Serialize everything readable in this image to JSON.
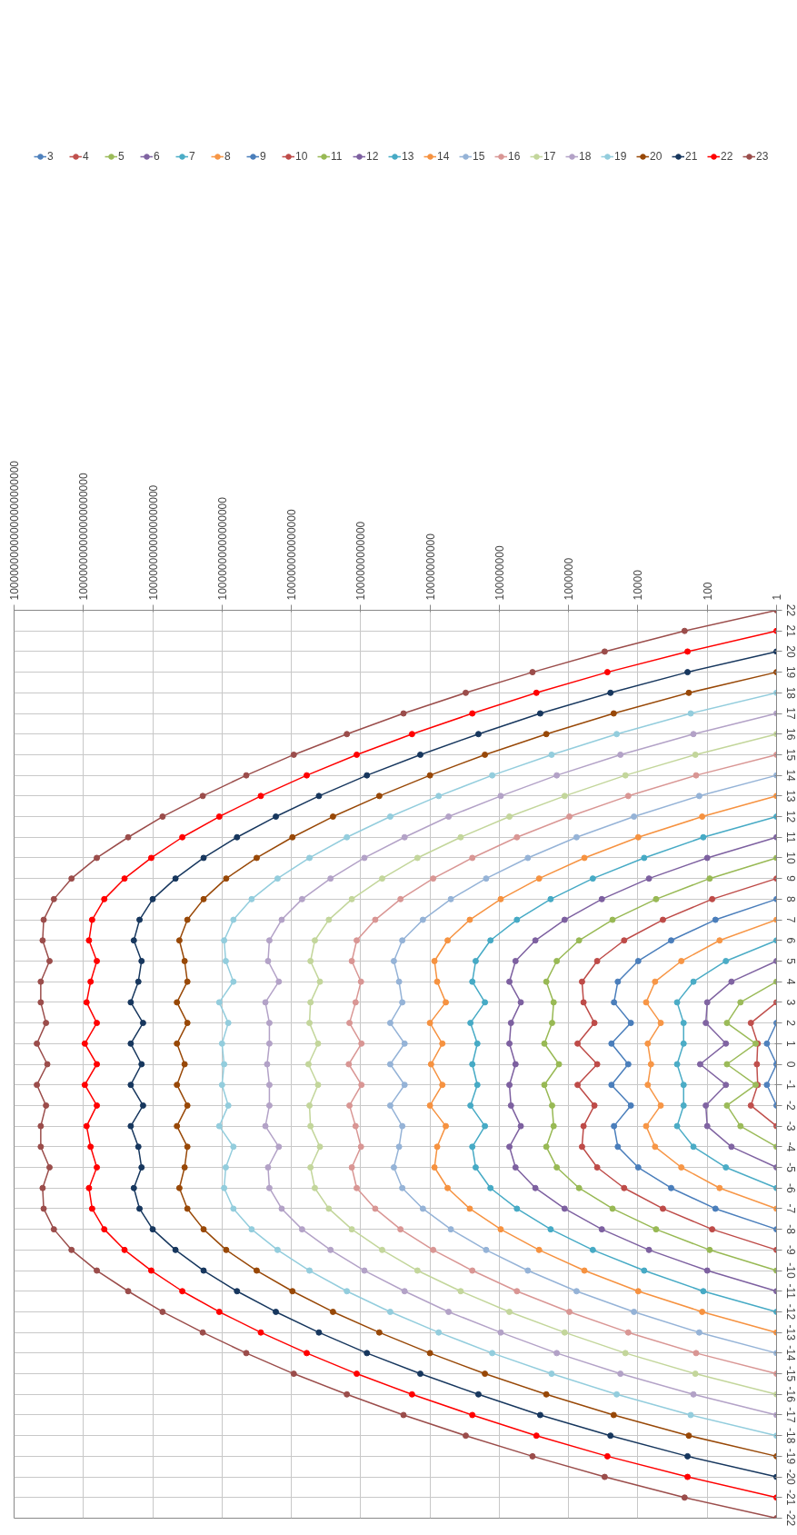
{
  "chart_data": {
    "type": "line",
    "ylim": [
      -22,
      22
    ],
    "yticks": [
      -22,
      -21,
      -20,
      -19,
      -18,
      -17,
      -16,
      -15,
      -14,
      -13,
      -12,
      -11,
      -10,
      -9,
      -8,
      -7,
      -6,
      -5,
      -4,
      -3,
      -2,
      -1,
      0,
      1,
      2,
      3,
      4,
      5,
      6,
      7,
      8,
      9,
      10,
      11,
      12,
      13,
      14,
      15,
      16,
      17,
      18,
      19,
      20,
      21,
      22
    ],
    "xlim": [
      1e+22,
      1
    ],
    "log": "x",
    "grid": true,
    "legend": "top",
    "marker": "circle",
    "line_style": "solid",
    "xticks": [
      1,
      100,
      10000,
      {
        "value": 1000000.0,
        "label": "1000000"
      },
      {
        "value": 100000000.0,
        "label": "100000000"
      },
      {
        "value": 10000000000.0,
        "label": "10000000000"
      },
      {
        "value": 1000000000000.0,
        "label": "1000000000000"
      },
      {
        "value": 100000000000000.0,
        "label": "100000000000000"
      },
      {
        "value": 1e+16,
        "label": "10000000000000000"
      },
      {
        "value": 1e+18,
        "label": "1000000000000000000"
      },
      {
        "value": 1e+20,
        "label": "100000000000000000000"
      },
      {
        "value": 1e+22,
        "label": "10000000000000000000000"
      }
    ],
    "series": [
      {
        "name": "3",
        "color": "#4f81bd",
        "values": [
          -2,
          -1,
          0,
          1,
          2
        ],
        "x": [
          1,
          1.9,
          1,
          1.9,
          1
        ]
      },
      {
        "name": "4",
        "color": "#c0504d",
        "values": [
          -3,
          -2,
          -1,
          0,
          1,
          2,
          3
        ],
        "x": [
          1,
          5.5,
          3.5,
          3.7,
          3.5,
          5.5,
          1
        ]
      },
      {
        "name": "5",
        "color": "#9bbb59",
        "values": [
          -4,
          -3,
          -2,
          -1,
          0,
          1,
          2,
          3,
          4
        ],
        "x": [
          1,
          11,
          27,
          4,
          27,
          4,
          27,
          11,
          1
        ]
      },
      {
        "name": "6",
        "color": "#8064a2",
        "values": [
          -5,
          -4,
          -3,
          -2,
          -1,
          0,
          1,
          2,
          3,
          4,
          5
        ],
        "x": [
          1,
          20,
          100,
          110,
          29,
          160,
          29,
          110,
          100,
          20,
          1
        ]
      },
      {
        "name": "7",
        "color": "#4bacc6",
        "values": [
          -6,
          -5,
          -4,
          -3,
          -2,
          -1,
          0,
          1,
          2,
          3,
          4,
          5,
          6
        ],
        "x": [
          1,
          29,
          250,
          740,
          480,
          480,
          740,
          480,
          480,
          740,
          250,
          29,
          1
        ]
      },
      {
        "name": "8",
        "color": "#f79646",
        "values": [
          -7,
          -6,
          -5,
          -4,
          -3,
          -2,
          -1,
          0,
          1,
          2,
          3,
          4,
          5,
          6,
          7
        ],
        "x": [
          1,
          44,
          560,
          3200,
          5800,
          2200,
          5200,
          4200,
          5200,
          2200,
          5800,
          3200,
          560,
          44,
          1
        ]
      },
      {
        "name": "9",
        "color": "#4a7ebb",
        "values": [
          -8,
          -7,
          -6,
          -5,
          -4,
          -3,
          -2,
          -1,
          0,
          1,
          2,
          3,
          4,
          5,
          6,
          7,
          8
        ],
        "x": [
          1,
          58,
          1100,
          9800,
          38000,
          49000,
          16000,
          58000,
          19000,
          58000,
          16000,
          49000,
          38000,
          9800,
          1100,
          58,
          1
        ]
      },
      {
        "name": "10",
        "color": "#be4b48",
        "values": [
          -9,
          -8,
          -7,
          -6,
          -5,
          -4,
          -3,
          -2,
          -1,
          0,
          1,
          2,
          3,
          4,
          5,
          6,
          7,
          8,
          9
        ],
        "x": [
          1,
          72,
          1900,
          25000,
          150000,
          410000,
          370000,
          180000,
          550000,
          150000,
          550000,
          180000,
          370000,
          410000,
          150000,
          25000,
          1900,
          72,
          1
        ]
      },
      {
        "name": "11",
        "color": "#98b954",
        "values": [
          -10,
          -9,
          -8,
          -7,
          -6,
          -5,
          -4,
          -3,
          -2,
          -1,
          0,
          1,
          2,
          3,
          4,
          5,
          6,
          7,
          8,
          9,
          10
        ],
        "x": [
          1,
          85,
          3000,
          54000,
          500000,
          2200000.0,
          4400000.0,
          2700000.0,
          3000000.0,
          5000000.0,
          1900000.0,
          5000000.0,
          3000000.0,
          2700000.0,
          4400000.0,
          2200000.0,
          500000,
          54000,
          3000,
          85,
          1
        ]
      },
      {
        "name": "12",
        "color": "#7d60a0",
        "values": [
          -11,
          -10,
          -9,
          -8,
          -7,
          -6,
          -5,
          -4,
          -3,
          -2,
          -1,
          0,
          1,
          2,
          3,
          4,
          5,
          6,
          7,
          8,
          9,
          10,
          11
        ],
        "x": [
          1,
          100,
          4800,
          110000,
          1300000.0,
          9100000.0,
          34000000.0,
          51000000.0,
          24000000.0,
          46000000.0,
          51000000.0,
          34000000.0,
          51000000.0,
          46000000.0,
          24000000.0,
          51000000.0,
          34000000.0,
          9100000.0,
          1300000.0,
          110000,
          4800,
          100,
          1
        ]
      },
      {
        "name": "13",
        "color": "#46aac5",
        "values": [
          -12,
          -11,
          -10,
          -9,
          -8,
          -7,
          -6,
          -5,
          -4,
          -3,
          -2,
          -1,
          0,
          1,
          2,
          3,
          4,
          5,
          6,
          7,
          8,
          9,
          10,
          11,
          12
        ],
        "x": [
          1,
          130,
          6600,
          200000,
          3300000.0,
          31000000.0,
          180000000.0,
          480000000.0,
          600000000.0,
          260000000.0,
          680000000.0,
          430000000.0,
          600000000.0,
          430000000.0,
          680000000.0,
          260000000.0,
          600000000.0,
          480000000.0,
          180000000.0,
          31000000.0,
          3300000.0,
          200000,
          6600,
          130,
          1
        ]
      },
      {
        "name": "14",
        "color": "#f69240",
        "values": [
          -13,
          -12,
          -11,
          -10,
          -9,
          -8,
          -7,
          -6,
          -5,
          -4,
          -3,
          -2,
          -1,
          0,
          1,
          2,
          3,
          4,
          5,
          6,
          7,
          8,
          9,
          10,
          11,
          12,
          13
        ],
        "x": [
          1,
          140,
          9800,
          350000,
          7100000.0,
          91000000.0,
          710000000.0,
          3100000000.0,
          7400000000.0,
          6200000000.0,
          3500000000.0,
          10000000000.0,
          4400000000.0,
          9300000000.0,
          4400000000.0,
          10000000000.0,
          3500000000.0,
          6200000000.0,
          7400000000.0,
          3100000000.0,
          710000000.0,
          91000000.0,
          7100000.0,
          350000,
          9800,
          140,
          1
        ]
      },
      {
        "name": "15",
        "color": "#95b3d7",
        "values": [
          -14,
          -13,
          -12,
          -11,
          -10,
          -9,
          -8,
          -7,
          -6,
          -5,
          -4,
          -3,
          -2,
          -1,
          0,
          1,
          2,
          3,
          4,
          5,
          6,
          7,
          8,
          9,
          10,
          11,
          12,
          13,
          14
        ],
        "x": [
          1,
          170,
          13000,
          590000,
          15000000.0,
          240000000.0,
          2500000000.0,
          16000000000.0,
          63000000000.0,
          110000000000.0,
          78000000000.0,
          63000000000.0,
          140000000000.0,
          54000000000.0,
          140000000000.0,
          54000000000.0,
          140000000000.0,
          63000000000.0,
          78000000000.0,
          110000000000.0,
          63000000000.0,
          16000000000.0,
          2500000000.0,
          240000000.0,
          15000000.0,
          590000,
          13000,
          170,
          1
        ]
      },
      {
        "name": "16",
        "color": "#d99694",
        "values": [
          -15,
          -14,
          -13,
          -12,
          -11,
          -10,
          -9,
          -8,
          -7,
          -6,
          -5,
          -4,
          -3,
          -2,
          -1,
          0,
          1,
          2,
          3,
          4,
          5,
          6,
          7,
          8,
          9,
          10,
          11,
          12,
          13,
          14,
          15
        ],
        "x": [
          1,
          210,
          19000,
          950000,
          31000000.0,
          600000000.0,
          8100000000.0,
          71000000000.0,
          380000000000.0,
          1300000000000.0,
          1800000000000.0,
          980000000000.0,
          1400000000000.0,
          2100000000000.0,
          950000000000.0,
          2200000000000.0,
          950000000000.0,
          2100000000000.0,
          1400000000000.0,
          980000000000.0,
          1800000000000.0,
          1300000000000.0,
          380000000000.0,
          71000000000.0,
          8100000000.0,
          600000000.0,
          31000000.0,
          950000,
          19000,
          210,
          1
        ]
      },
      {
        "name": "17",
        "color": "#c3d69b",
        "values": [
          -16,
          -15,
          -14,
          -13,
          -12,
          -11,
          -10,
          -9,
          -8,
          -7,
          -6,
          -5,
          -4,
          -3,
          -2,
          -1,
          0,
          1,
          2,
          3,
          4,
          5,
          6,
          7,
          8,
          9,
          10,
          11,
          12,
          13,
          14,
          15,
          16
        ],
        "x": [
          1,
          220,
          23000,
          1300000.0,
          51000000.0,
          1300000000.0,
          23000000000.0,
          240000000000.0,
          1800000000000.0,
          8300000000000.0,
          21000000000000.0,
          28000000000000.0,
          15000000000000.0,
          28000000000000.0,
          30000000000000.0,
          17000000000000.0,
          32000000000000.0,
          17000000000000.0,
          30000000000000.0,
          28000000000000.0,
          15000000000000.0,
          28000000000000.0,
          21000000000000.0,
          8300000000000.0,
          1800000000000.0,
          240000000000.0,
          23000000000.0,
          1300000000.0,
          51000000.0,
          1300000.0,
          23000,
          220,
          1
        ]
      },
      {
        "name": "18",
        "color": "#b3a2c7",
        "values": [
          -17,
          -16,
          -15,
          -14,
          -13,
          -12,
          -11,
          -10,
          -9,
          -8,
          -7,
          -6,
          -5,
          -4,
          -3,
          -2,
          -1,
          0,
          1,
          2,
          3,
          4,
          5,
          6,
          7,
          8,
          9,
          10,
          11,
          12,
          13,
          14,
          15,
          16,
          17
        ],
        "x": [
          1,
          250,
          32000,
          2200000.0,
          91000000.0,
          2900000000.0,
          54000000000.0,
          780000000000.0,
          7400000000000.0,
          49000000000000.0,
          190000000000000.0,
          430000000000000.0,
          470000000000000.0,
          230000000000000.0,
          560000000000000.0,
          430000000000000.0,
          430000000000000.0,
          500000000000000.0,
          430000000000000.0,
          430000000000000.0,
          560000000000000.0,
          230000000000000.0,
          470000000000000.0,
          430000000000000.0,
          190000000000000.0,
          49000000000000.0,
          7400000000000.0,
          780000000000.0,
          54000000000.0,
          2900000000.0,
          91000000.0,
          2200000.0,
          32000,
          250,
          1
        ]
      },
      {
        "name": "19",
        "color": "#93cddd",
        "values": [
          -18,
          -17,
          -16,
          -15,
          -14,
          -13,
          -12,
          -11,
          -10,
          -9,
          -8,
          -7,
          -6,
          -5,
          -4,
          -3,
          -2,
          -1,
          0,
          1,
          2,
          3,
          4,
          5,
          6,
          7,
          8,
          9,
          10,
          11,
          12,
          13,
          14,
          15,
          16,
          17,
          18
        ],
        "x": [
          1,
          300,
          41000,
          3100000.0,
          160000000.0,
          5600000000.0,
          140000000000.0,
          2500000000000.0,
          30000000000000.0,
          250000000000000.0,
          1400000000000000.0,
          4700000000000000.0,
          8700000000000000.0,
          7800000000000000.0,
          4700000000000000.0,
          1.2e+16,
          6600000000000000.0,
          1e+16,
          8700000000000000.0,
          1e+16,
          6600000000000000.0,
          1.2e+16,
          4700000000000000.0,
          7800000000000000.0,
          8700000000000000.0,
          4700000000000000.0,
          1400000000000000.0,
          250000000000000.0,
          30000000000000.0,
          2500000000000.0,
          140000000000.0,
          5600000000.0,
          160000000.0,
          3100000.0,
          41000,
          300,
          1
        ]
      },
      {
        "name": "20",
        "color": "#984807",
        "values": [
          -19,
          -18,
          -17,
          -16,
          -15,
          -14,
          -13,
          -12,
          -11,
          -10,
          -9,
          -8,
          -7,
          -6,
          -5,
          -4,
          -3,
          -2,
          -1,
          0,
          1,
          2,
          3,
          4,
          5,
          6,
          7,
          8,
          9,
          10,
          11,
          12,
          13,
          14,
          15,
          16,
          17,
          18,
          19
        ],
        "x": [
          1,
          340,
          50000,
          4400000.0,
          260000000.0,
          10000000000.0,
          290000000000.0,
          6300000000000.0,
          93000000000000.0,
          1000000000000000.0,
          7600000000000000.0,
          3.4e+16,
          1e+17,
          1.7e+17,
          1.2e+17,
          1e+17,
          2e+17,
          1e+17,
          2e+17,
          1.2e+17,
          2e+17,
          1e+17,
          2e+17,
          1e+17,
          1.2e+17,
          1.7e+17,
          1e+17,
          3.4e+16,
          7600000000000000.0,
          1000000000000000.0,
          93000000000000.0,
          6300000000000.0,
          290000000000.0,
          10000000000.0,
          260000000.0,
          4400000.0,
          50000,
          340,
          1
        ]
      },
      {
        "name": "21",
        "color": "#17375e",
        "values": [
          -20,
          -19,
          -18,
          -17,
          -16,
          -15,
          -14,
          -13,
          -12,
          -11,
          -10,
          -9,
          -8,
          -7,
          -6,
          -5,
          -4,
          -3,
          -2,
          -1,
          0,
          1,
          2,
          3,
          4,
          5,
          6,
          7,
          8,
          9,
          10,
          11,
          12,
          13,
          14,
          15,
          16,
          17,
          18,
          19,
          20
        ],
        "x": [
          1,
          370,
          62000,
          6600000.0,
          400000000.0,
          19000000000.0,
          660000000000.0,
          16000000000000.0,
          280000000000000.0,
          3700000000000000.0,
          3.4e+16,
          2.2e+17,
          1e+18,
          2.4e+18,
          3.5e+18,
          2.1e+18,
          2.6e+18,
          4.3e+18,
          1.9e+18,
          4.3e+18,
          2.1e+18,
          4.3e+18,
          1.9e+18,
          4.3e+18,
          2.6e+18,
          2.1e+18,
          3.5e+18,
          2.4e+18,
          1e+18,
          2.2e+17,
          3.4e+16,
          3700000000000000.0,
          280000000000000.0,
          16000000000000.0,
          660000000000.0,
          19000000000.0,
          400000000.0,
          6600000.0,
          62000,
          370,
          1
        ]
      },
      {
        "name": "22",
        "color": "#ff0000",
        "values": [
          -21,
          -20,
          -19,
          -18,
          -17,
          -16,
          -15,
          -14,
          -13,
          -12,
          -11,
          -10,
          -9,
          -8,
          -7,
          -6,
          -5,
          -4,
          -3,
          -2,
          -1,
          0,
          1,
          2,
          3,
          4,
          5,
          6,
          7,
          8,
          9,
          10,
          11,
          12,
          13,
          14,
          15,
          16,
          17,
          18,
          19,
          20,
          21
        ],
        "x": [
          1,
          370,
          76000,
          8500000.0,
          600000000.0,
          33000000000.0,
          1300000000000.0,
          36000000000000.0,
          760000000000000.0,
          1.2e+16,
          1.4e+17,
          1.1e+18,
          6.5e+18,
          2.5e+19,
          5.6e+19,
          6.9e+19,
          4.1e+19,
          6.2e+19,
          8.1e+19,
          4.1e+19,
          9.1e+19,
          4.1e+19,
          9.1e+19,
          4.1e+19,
          8.1e+19,
          6.2e+19,
          4.1e+19,
          6.9e+19,
          5.6e+19,
          2.5e+19,
          6.5e+18,
          1.1e+18,
          1.4e+17,
          1.2e+16,
          760000000000000.0,
          36000000000000.0,
          1300000000000.0,
          33000000000.0,
          600000000.0,
          8500000.0,
          76000,
          370,
          1
        ]
      },
      {
        "name": "23",
        "color": "#9b4d4b",
        "values": [
          -22,
          -21,
          -20,
          -19,
          -18,
          -17,
          -16,
          -15,
          -14,
          -13,
          -12,
          -11,
          -10,
          -9,
          -8,
          -7,
          -6,
          -5,
          -4,
          -3,
          -2,
          -1,
          0,
          1,
          2,
          3,
          4,
          5,
          6,
          7,
          8,
          9,
          10,
          11,
          12,
          13,
          14,
          15,
          16,
          17,
          18,
          19,
          20,
          21,
          22
        ],
        "x": [
          1,
          450,
          91000,
          11000000.0,
          930000000.0,
          58000000000.0,
          2500000000000.0,
          85000000000000.0,
          2000000000000000.0,
          3.6e+16,
          5.2e+17,
          5.1e+18,
          4.1e+19,
          2.2e+20,
          7.1e+20,
          1.4e+21,
          1.5e+21,
          9.5e+20,
          1.7e+21,
          1.7e+21,
          1.2e+21,
          2.2e+21,
          1.1e+21,
          2.2e+21,
          1.2e+21,
          1.7e+21,
          1.7e+21,
          9.5e+20,
          1.5e+21,
          1.4e+21,
          7.1e+20,
          2.2e+20,
          4.1e+19,
          5.1e+18,
          5.2e+17,
          3.6e+16,
          2000000000000000.0,
          85000000000000.0,
          2500000000000.0,
          58000000000.0,
          930000000.0,
          11000000.0,
          91000,
          450,
          1
        ]
      }
    ]
  }
}
